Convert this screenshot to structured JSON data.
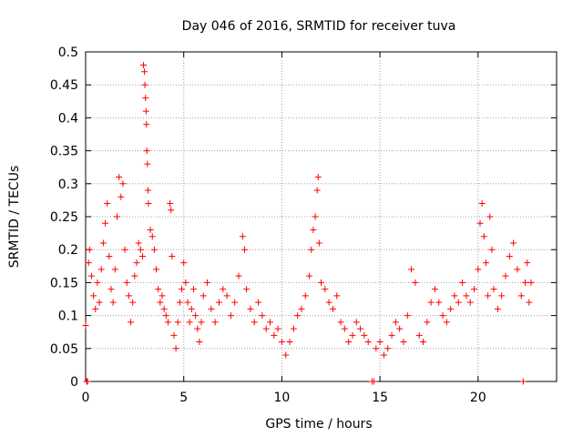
{
  "chart_data": {
    "type": "scatter",
    "title": "Day 046 of 2016, SRMTID for receiver tuva",
    "xlabel": "GPS time / hours",
    "ylabel": "SRMTID / TECUs",
    "xlim": [
      0,
      24
    ],
    "ylim": [
      0,
      0.5
    ],
    "x_ticks": [
      "0",
      "5",
      "10",
      "15",
      "20"
    ],
    "x_tick_values": [
      0,
      5,
      10,
      15,
      20
    ],
    "y_ticks": [
      "0",
      "0.05",
      "0.1",
      "0.15",
      "0.2",
      "0.25",
      "0.3",
      "0.35",
      "0.4",
      "0.45",
      "0.5"
    ],
    "y_tick_values": [
      0,
      0.05,
      0.1,
      0.15,
      0.2,
      0.25,
      0.3,
      0.35,
      0.4,
      0.45,
      0.5
    ],
    "grid": true,
    "marker": "+",
    "color": "#ff0000",
    "series": [
      {
        "name": "SRMTID",
        "points": [
          [
            0.0,
            0.085
          ],
          [
            0.05,
            0.0
          ],
          [
            0.1,
            0.0
          ],
          [
            0.15,
            0.18
          ],
          [
            0.2,
            0.2
          ],
          [
            0.3,
            0.16
          ],
          [
            0.4,
            0.13
          ],
          [
            0.5,
            0.11
          ],
          [
            0.6,
            0.15
          ],
          [
            0.7,
            0.12
          ],
          [
            0.8,
            0.17
          ],
          [
            0.9,
            0.21
          ],
          [
            1.0,
            0.24
          ],
          [
            1.1,
            0.27
          ],
          [
            1.2,
            0.19
          ],
          [
            1.3,
            0.14
          ],
          [
            1.4,
            0.12
          ],
          [
            1.5,
            0.17
          ],
          [
            1.6,
            0.25
          ],
          [
            1.7,
            0.31
          ],
          [
            1.8,
            0.28
          ],
          [
            1.9,
            0.3
          ],
          [
            2.0,
            0.2
          ],
          [
            2.1,
            0.15
          ],
          [
            2.2,
            0.13
          ],
          [
            2.3,
            0.09
          ],
          [
            2.4,
            0.12
          ],
          [
            2.5,
            0.16
          ],
          [
            2.6,
            0.18
          ],
          [
            2.7,
            0.21
          ],
          [
            2.8,
            0.2
          ],
          [
            2.9,
            0.19
          ],
          [
            2.95,
            0.48
          ],
          [
            3.0,
            0.47
          ],
          [
            3.02,
            0.45
          ],
          [
            3.05,
            0.43
          ],
          [
            3.08,
            0.41
          ],
          [
            3.1,
            0.39
          ],
          [
            3.12,
            0.35
          ],
          [
            3.15,
            0.33
          ],
          [
            3.18,
            0.29
          ],
          [
            3.2,
            0.27
          ],
          [
            3.3,
            0.23
          ],
          [
            3.4,
            0.22
          ],
          [
            3.5,
            0.2
          ],
          [
            3.6,
            0.17
          ],
          [
            3.7,
            0.14
          ],
          [
            3.8,
            0.12
          ],
          [
            3.9,
            0.13
          ],
          [
            4.0,
            0.11
          ],
          [
            4.1,
            0.1
          ],
          [
            4.2,
            0.09
          ],
          [
            4.3,
            0.27
          ],
          [
            4.35,
            0.26
          ],
          [
            4.4,
            0.19
          ],
          [
            4.5,
            0.07
          ],
          [
            4.6,
            0.05
          ],
          [
            4.7,
            0.09
          ],
          [
            4.8,
            0.12
          ],
          [
            4.9,
            0.14
          ],
          [
            5.0,
            0.18
          ],
          [
            5.1,
            0.15
          ],
          [
            5.2,
            0.12
          ],
          [
            5.3,
            0.09
          ],
          [
            5.4,
            0.11
          ],
          [
            5.5,
            0.14
          ],
          [
            5.6,
            0.1
          ],
          [
            5.7,
            0.08
          ],
          [
            5.8,
            0.06
          ],
          [
            5.9,
            0.09
          ],
          [
            6.0,
            0.13
          ],
          [
            6.2,
            0.15
          ],
          [
            6.4,
            0.11
          ],
          [
            6.6,
            0.09
          ],
          [
            6.8,
            0.12
          ],
          [
            7.0,
            0.14
          ],
          [
            7.2,
            0.13
          ],
          [
            7.4,
            0.1
          ],
          [
            7.6,
            0.12
          ],
          [
            7.8,
            0.16
          ],
          [
            8.0,
            0.22
          ],
          [
            8.1,
            0.2
          ],
          [
            8.2,
            0.14
          ],
          [
            8.4,
            0.11
          ],
          [
            8.6,
            0.09
          ],
          [
            8.8,
            0.12
          ],
          [
            9.0,
            0.1
          ],
          [
            9.2,
            0.08
          ],
          [
            9.4,
            0.09
          ],
          [
            9.6,
            0.07
          ],
          [
            9.8,
            0.08
          ],
          [
            10.0,
            0.06
          ],
          [
            10.2,
            0.04
          ],
          [
            10.4,
            0.06
          ],
          [
            10.6,
            0.08
          ],
          [
            10.8,
            0.1
          ],
          [
            11.0,
            0.11
          ],
          [
            11.2,
            0.13
          ],
          [
            11.4,
            0.16
          ],
          [
            11.5,
            0.2
          ],
          [
            11.6,
            0.23
          ],
          [
            11.7,
            0.25
          ],
          [
            11.8,
            0.29
          ],
          [
            11.85,
            0.31
          ],
          [
            11.9,
            0.21
          ],
          [
            12.0,
            0.15
          ],
          [
            12.2,
            0.14
          ],
          [
            12.4,
            0.12
          ],
          [
            12.6,
            0.11
          ],
          [
            12.8,
            0.13
          ],
          [
            13.0,
            0.09
          ],
          [
            13.2,
            0.08
          ],
          [
            13.4,
            0.06
          ],
          [
            13.6,
            0.07
          ],
          [
            13.8,
            0.09
          ],
          [
            14.0,
            0.08
          ],
          [
            14.2,
            0.07
          ],
          [
            14.4,
            0.06
          ],
          [
            14.6,
            0.0
          ],
          [
            14.7,
            0.0
          ],
          [
            14.8,
            0.05
          ],
          [
            15.0,
            0.06
          ],
          [
            15.2,
            0.04
          ],
          [
            15.4,
            0.05
          ],
          [
            15.6,
            0.07
          ],
          [
            15.8,
            0.09
          ],
          [
            16.0,
            0.08
          ],
          [
            16.2,
            0.06
          ],
          [
            16.4,
            0.1
          ],
          [
            16.6,
            0.17
          ],
          [
            16.8,
            0.15
          ],
          [
            17.0,
            0.07
          ],
          [
            17.2,
            0.06
          ],
          [
            17.4,
            0.09
          ],
          [
            17.6,
            0.12
          ],
          [
            17.8,
            0.14
          ],
          [
            18.0,
            0.12
          ],
          [
            18.2,
            0.1
          ],
          [
            18.4,
            0.09
          ],
          [
            18.6,
            0.11
          ],
          [
            18.8,
            0.13
          ],
          [
            19.0,
            0.12
          ],
          [
            19.2,
            0.15
          ],
          [
            19.4,
            0.13
          ],
          [
            19.6,
            0.12
          ],
          [
            19.8,
            0.14
          ],
          [
            20.0,
            0.17
          ],
          [
            20.1,
            0.24
          ],
          [
            20.2,
            0.27
          ],
          [
            20.3,
            0.22
          ],
          [
            20.4,
            0.18
          ],
          [
            20.5,
            0.13
          ],
          [
            20.6,
            0.25
          ],
          [
            20.7,
            0.2
          ],
          [
            20.8,
            0.14
          ],
          [
            21.0,
            0.11
          ],
          [
            21.2,
            0.13
          ],
          [
            21.4,
            0.16
          ],
          [
            21.6,
            0.19
          ],
          [
            21.8,
            0.21
          ],
          [
            22.0,
            0.17
          ],
          [
            22.2,
            0.13
          ],
          [
            22.3,
            0.0
          ],
          [
            22.4,
            0.15
          ],
          [
            22.5,
            0.18
          ],
          [
            22.6,
            0.12
          ],
          [
            22.7,
            0.15
          ]
        ]
      }
    ]
  }
}
